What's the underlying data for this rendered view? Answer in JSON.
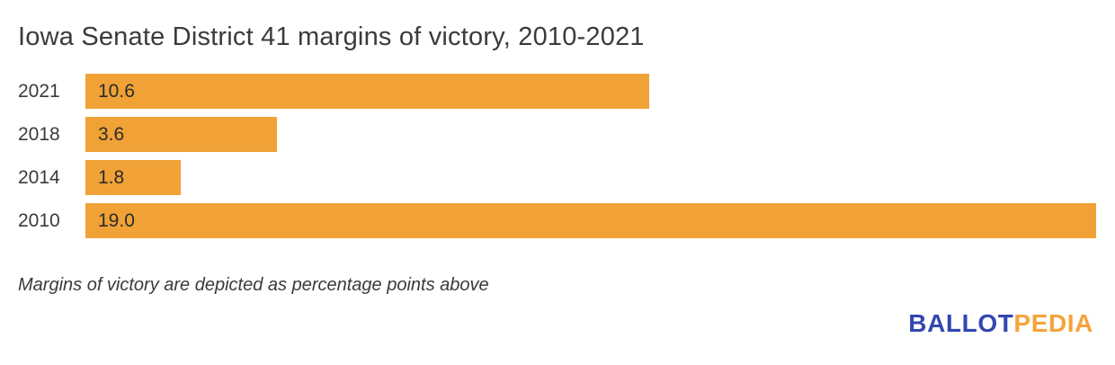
{
  "title": "Iowa Senate District 41 margins of victory, 2010-2021",
  "footnote": "Margins of victory are depicted as percentage points above",
  "logo": {
    "part1": "BALLOT",
    "part2": "PEDIA"
  },
  "colors": {
    "bar": "#F0A236",
    "logo_blue": "#3347B0",
    "logo_orange": "#F6A33B",
    "text": "#3B3B3B",
    "value_text": "#2B2B2B"
  },
  "chart_data": {
    "type": "bar",
    "orientation": "horizontal",
    "title": "Iowa Senate District 41 margins of victory, 2010-2021",
    "categories": [
      "2021",
      "2018",
      "2014",
      "2010"
    ],
    "values": [
      10.6,
      3.6,
      1.8,
      19.0
    ],
    "value_labels": [
      "10.6",
      "3.6",
      "1.8",
      "19.0"
    ],
    "xlabel": "",
    "ylabel": "",
    "xlim": [
      0,
      19.0
    ],
    "grid": false,
    "legend": false,
    "bar_color": "#F0A236",
    "annotation": "Margins of victory are depicted as percentage points above"
  }
}
